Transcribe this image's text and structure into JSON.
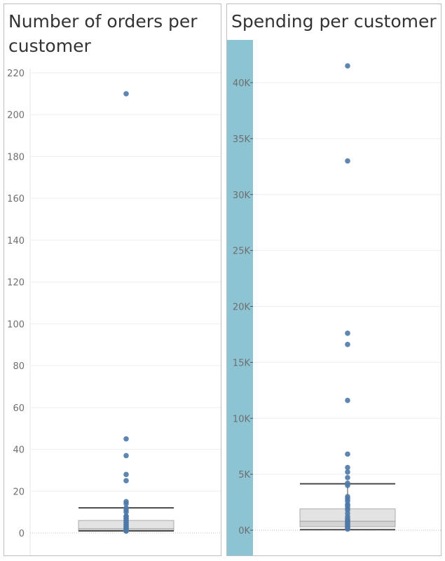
{
  "colors": {
    "point": "#4e79a7",
    "band": "#8dc4d3",
    "box_lower": "#d4d4d4",
    "box_upper": "#e3e3e3",
    "whisker": "#4a4a4a",
    "grid": "#eeeeee"
  },
  "chart_data": [
    {
      "type": "boxplot",
      "title": "Number of orders per customer",
      "title_lines": [
        "Number of orders per",
        "customer"
      ],
      "xlabel": "",
      "ylabel": "",
      "ylim": [
        -3,
        223
      ],
      "yticks": [
        0,
        20,
        40,
        60,
        80,
        100,
        120,
        140,
        160,
        180,
        200,
        220
      ],
      "ytick_labels": [
        "0",
        "20",
        "40",
        "60",
        "80",
        "100",
        "120",
        "140",
        "160",
        "180",
        "200",
        "220"
      ],
      "box": {
        "whisker_low": 1,
        "q1": 1,
        "median": 2,
        "q3": 6,
        "whisker_high": 12
      },
      "values": [
        210,
        45,
        37,
        28,
        25,
        15,
        14,
        12,
        11,
        10,
        8,
        8,
        7,
        7,
        6,
        6,
        5,
        5,
        4,
        4,
        3,
        3,
        3,
        2,
        2,
        2,
        1,
        1,
        1,
        1
      ]
    },
    {
      "type": "boxplot",
      "title": "Spending per customer",
      "title_lines": [
        "Spending per customer"
      ],
      "xlabel": "",
      "ylabel": "",
      "ylim": [
        0,
        44000
      ],
      "yticks": [
        0,
        5000,
        10000,
        15000,
        20000,
        25000,
        30000,
        35000,
        40000
      ],
      "ytick_labels": [
        "0K",
        "5K",
        "10K",
        "15K",
        "20K",
        "25K",
        "30K",
        "35K",
        "40K"
      ],
      "box": {
        "whisker_low": 50,
        "q1": 300,
        "median": 800,
        "q3": 1900,
        "whisker_high": 4150
      },
      "values": [
        41500,
        33000,
        17600,
        16600,
        11600,
        6800,
        5600,
        5200,
        4700,
        4200,
        4000,
        3000,
        2800,
        2600,
        2300,
        2200,
        2000,
        1800,
        1500,
        1200,
        1000,
        900,
        800,
        700,
        600,
        500,
        400,
        300,
        200,
        100
      ]
    }
  ]
}
